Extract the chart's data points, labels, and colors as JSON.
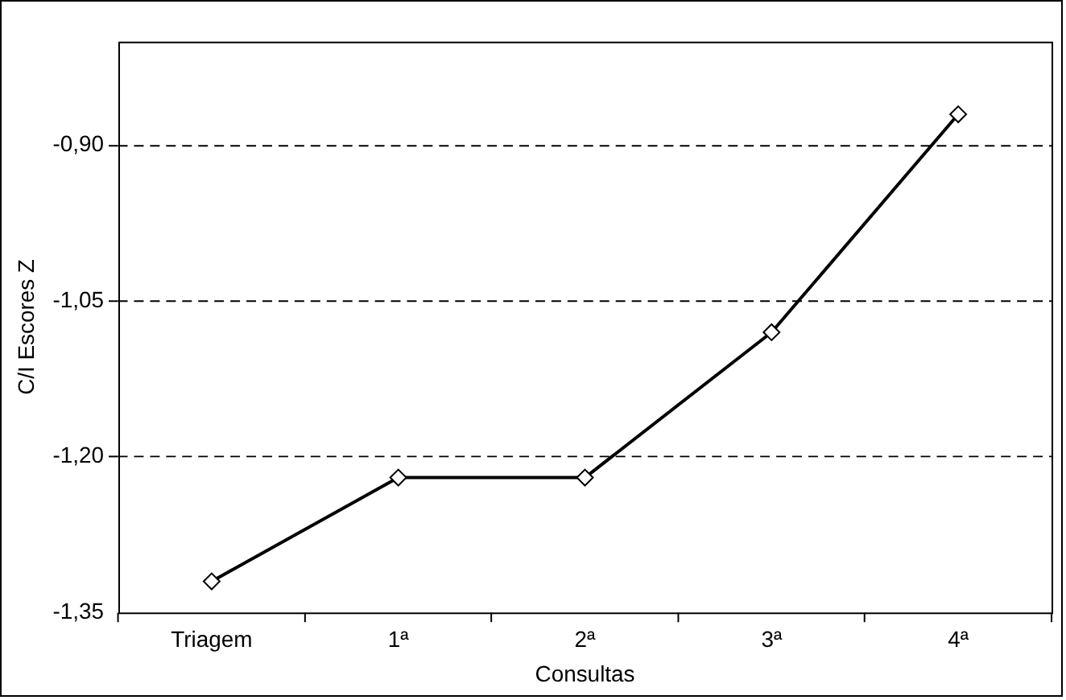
{
  "chart_data": {
    "type": "line",
    "xlabel": "Consultas",
    "ylabel": "C/I Escores Z",
    "categories": [
      "Triagem",
      "1ª",
      "2ª",
      "3ª",
      "4ª"
    ],
    "series": [
      {
        "color": "#000000",
        "values": [
          -1.32,
          -1.22,
          -1.22,
          -1.08,
          -0.87
        ]
      }
    ],
    "ylim": [
      -1.35,
      -0.8
    ],
    "yticks": [
      {
        "value": -1.35,
        "label": "-1,35"
      },
      {
        "value": -1.2,
        "label": "-1,20"
      },
      {
        "value": -1.05,
        "label": "-1,05"
      },
      {
        "value": -0.9,
        "label": "-0,90"
      }
    ],
    "grid": "y",
    "marker": "diamond",
    "line_style": "solid",
    "legend": false
  }
}
